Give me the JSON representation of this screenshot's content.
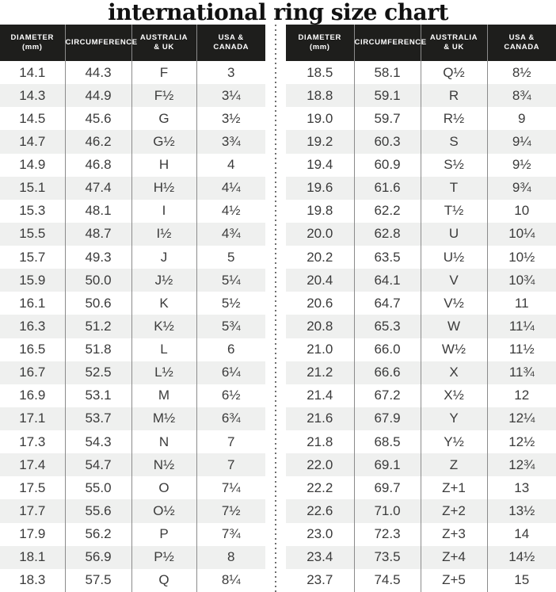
{
  "title": "international ring size chart",
  "columns": [
    {
      "line1": "DIAMETER",
      "line2": "(mm)"
    },
    {
      "line1": "CIRCUMFERENCE",
      "line2": ""
    },
    {
      "line1": "AUSTRALIA",
      "line2": "& UK"
    },
    {
      "line1": "USA &",
      "line2": "CANADA"
    }
  ],
  "colors": {
    "header_bg": "#1e1e1c",
    "header_text": "#ffffff",
    "row_stripe": "#eff0ef",
    "body_text": "#3b3b3b",
    "column_separator": "#8b8b8b",
    "divider_dots": "#6f6f6f",
    "title_text": "#111111"
  },
  "chart_data": {
    "type": "table",
    "title": "international ring size chart",
    "columns": [
      "DIAMETER (mm)",
      "CIRCUMFERENCE",
      "AUSTRALIA & UK",
      "USA & CANADA"
    ],
    "tables": [
      {
        "rows": [
          [
            "14.1",
            "44.3",
            "F",
            "3"
          ],
          [
            "14.3",
            "44.9",
            "F½",
            "3¼"
          ],
          [
            "14.5",
            "45.6",
            "G",
            "3½"
          ],
          [
            "14.7",
            "46.2",
            "G½",
            "3¾"
          ],
          [
            "14.9",
            "46.8",
            "H",
            "4"
          ],
          [
            "15.1",
            "47.4",
            "H½",
            "4¼"
          ],
          [
            "15.3",
            "48.1",
            "I",
            "4½"
          ],
          [
            "15.5",
            "48.7",
            "I½",
            "4¾"
          ],
          [
            "15.7",
            "49.3",
            "J",
            "5"
          ],
          [
            "15.9",
            "50.0",
            "J½",
            "5¼"
          ],
          [
            "16.1",
            "50.6",
            "K",
            "5½"
          ],
          [
            "16.3",
            "51.2",
            "K½",
            "5¾"
          ],
          [
            "16.5",
            "51.8",
            "L",
            "6"
          ],
          [
            "16.7",
            "52.5",
            "L½",
            "6¼"
          ],
          [
            "16.9",
            "53.1",
            "M",
            "6½"
          ],
          [
            "17.1",
            "53.7",
            "M½",
            "6¾"
          ],
          [
            "17.3",
            "54.3",
            "N",
            "7"
          ],
          [
            "17.4",
            "54.7",
            "N½",
            "7"
          ],
          [
            "17.5",
            "55.0",
            "O",
            "7¼"
          ],
          [
            "17.7",
            "55.6",
            "O½",
            "7½"
          ],
          [
            "17.9",
            "56.2",
            "P",
            "7¾"
          ],
          [
            "18.1",
            "56.9",
            "P½",
            "8"
          ],
          [
            "18.3",
            "57.5",
            "Q",
            "8¼"
          ]
        ]
      },
      {
        "rows": [
          [
            "18.5",
            "58.1",
            "Q½",
            "8½"
          ],
          [
            "18.8",
            "59.1",
            "R",
            "8¾"
          ],
          [
            "19.0",
            "59.7",
            "R½",
            "9"
          ],
          [
            "19.2",
            "60.3",
            "S",
            "9¼"
          ],
          [
            "19.4",
            "60.9",
            "S½",
            "9½"
          ],
          [
            "19.6",
            "61.6",
            "T",
            "9¾"
          ],
          [
            "19.8",
            "62.2",
            "T½",
            "10"
          ],
          [
            "20.0",
            "62.8",
            "U",
            "10¼"
          ],
          [
            "20.2",
            "63.5",
            "U½",
            "10½"
          ],
          [
            "20.4",
            "64.1",
            "V",
            "10¾"
          ],
          [
            "20.6",
            "64.7",
            "V½",
            "11"
          ],
          [
            "20.8",
            "65.3",
            "W",
            "11¼"
          ],
          [
            "21.0",
            "66.0",
            "W½",
            "11½"
          ],
          [
            "21.2",
            "66.6",
            "X",
            "11¾"
          ],
          [
            "21.4",
            "67.2",
            "X½",
            "12"
          ],
          [
            "21.6",
            "67.9",
            "Y",
            "12¼"
          ],
          [
            "21.8",
            "68.5",
            "Y½",
            "12½"
          ],
          [
            "22.0",
            "69.1",
            "Z",
            "12¾"
          ],
          [
            "22.2",
            "69.7",
            "Z+1",
            "13"
          ],
          [
            "22.6",
            "71.0",
            "Z+2",
            "13½"
          ],
          [
            "23.0",
            "72.3",
            "Z+3",
            "14"
          ],
          [
            "23.4",
            "73.5",
            "Z+4",
            "14½"
          ],
          [
            "23.7",
            "74.5",
            "Z+5",
            "15"
          ]
        ]
      }
    ]
  }
}
